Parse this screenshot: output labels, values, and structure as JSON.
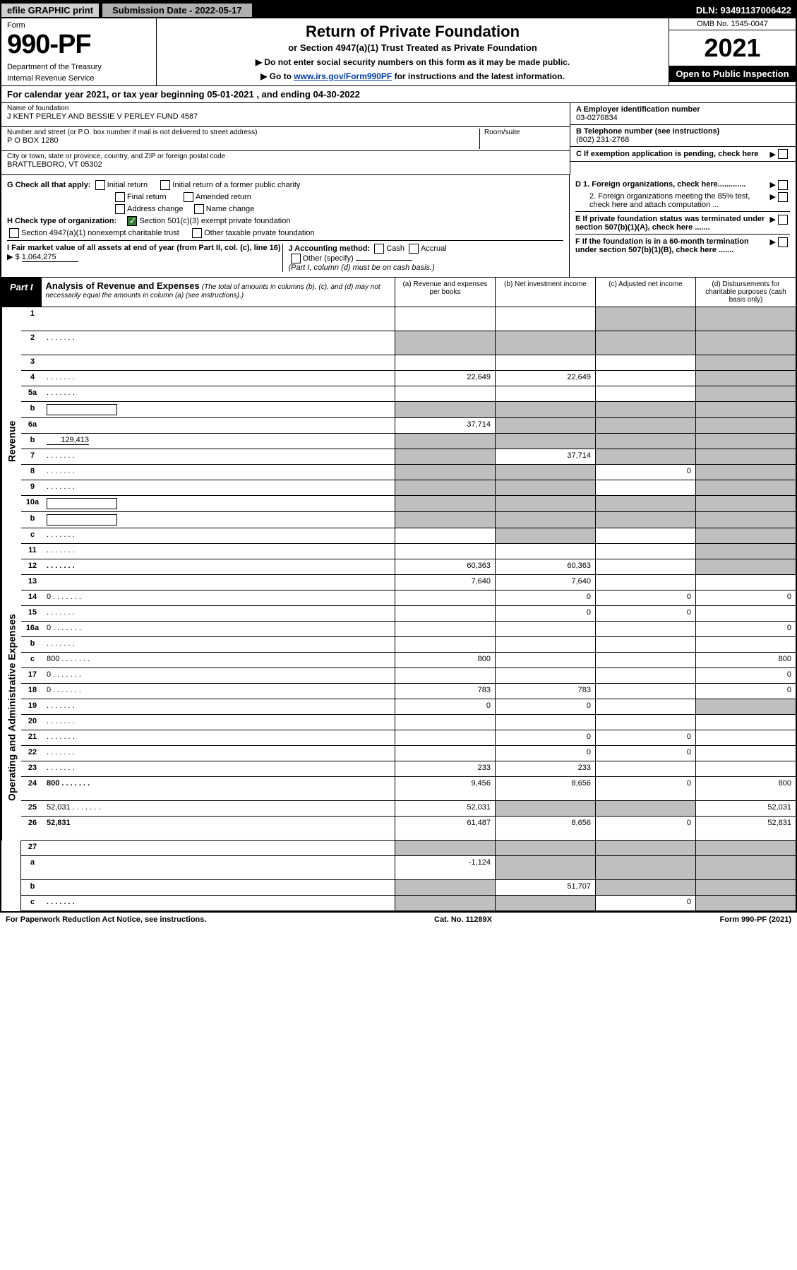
{
  "topbar": {
    "efile": "efile GRAPHIC print",
    "submission": "Submission Date - 2022-05-17",
    "dln": "DLN: 93491137006422"
  },
  "header": {
    "form_word": "Form",
    "form_num": "990-PF",
    "dept1": "Department of the Treasury",
    "dept2": "Internal Revenue Service",
    "title": "Return of Private Foundation",
    "subtitle": "or Section 4947(a)(1) Trust Treated as Private Foundation",
    "instr1": "▶ Do not enter social security numbers on this form as it may be made public.",
    "instr2_pre": "▶ Go to ",
    "instr2_link": "www.irs.gov/Form990PF",
    "instr2_post": " for instructions and the latest information.",
    "omb": "OMB No. 1545-0047",
    "year": "2021",
    "open": "Open to Public Inspection"
  },
  "calyr": "For calendar year 2021, or tax year beginning 05-01-2021                     , and ending 04-30-2022",
  "name_block": {
    "name_lbl": "Name of foundation",
    "name": "J KENT PERLEY AND BESSIE V PERLEY FUND 4587",
    "addr_lbl": "Number and street (or P.O. box number if mail is not delivered to street address)",
    "room_lbl": "Room/suite",
    "addr": "P O BOX 1280",
    "city_lbl": "City or town, state or province, country, and ZIP or foreign postal code",
    "city": "BRATTLEBORO, VT  05302"
  },
  "right_block": {
    "a_lbl": "A Employer identification number",
    "a_val": "03-0276834",
    "b_lbl": "B Telephone number (see instructions)",
    "b_val": "(802) 231-2768",
    "c_lbl": "C If exemption application is pending, check here",
    "d1": "D 1. Foreign organizations, check here.............",
    "d2": "2. Foreign organizations meeting the 85% test, check here and attach computation ...",
    "e": "E  If private foundation status was terminated under section 507(b)(1)(A), check here .......",
    "f": "F  If the foundation is in a 60-month termination under section 507(b)(1)(B), check here ......."
  },
  "g_block": {
    "g_lbl": "G Check all that apply:",
    "g_opts": [
      "Initial return",
      "Initial return of a former public charity",
      "Final return",
      "Amended return",
      "Address change",
      "Name change"
    ],
    "h_lbl": "H Check type of organization:",
    "h_opt1": "Section 501(c)(3) exempt private foundation",
    "h_opt2": "Section 4947(a)(1) nonexempt charitable trust",
    "h_opt3": "Other taxable private foundation",
    "i_lbl": "I Fair market value of all assets at end of year (from Part II, col. (c), line 16)",
    "i_val": "1,064,275",
    "j_lbl": "J Accounting method:",
    "j_opts": [
      "Cash",
      "Accrual"
    ],
    "j_other": "Other (specify)",
    "j_note": "(Part I, column (d) must be on cash basis.)"
  },
  "part1": {
    "label": "Part I",
    "title": "Analysis of Revenue and Expenses",
    "title_note": "(The total of amounts in columns (b), (c), and (d) may not necessarily equal the amounts in column (a) (see instructions).)",
    "col_a": "(a)   Revenue and expenses per books",
    "col_b": "(b)   Net investment income",
    "col_c": "(c)   Adjusted net income",
    "col_d": "(d)   Disbursements for charitable purposes (cash basis only)"
  },
  "side_rev": "Revenue",
  "side_exp": "Operating and Administrative Expenses",
  "rows_rev": [
    {
      "n": "1",
      "d": "",
      "a": "",
      "b": "",
      "c": "",
      "grey_c": true,
      "grey_d": true,
      "tall": true
    },
    {
      "n": "2",
      "d": "",
      "dots": true,
      "a": "",
      "b": "",
      "c": "",
      "grey_a": true,
      "grey_b": true,
      "grey_c": true,
      "grey_d": true,
      "tall": true,
      "bold_not": true
    },
    {
      "n": "3",
      "d": "",
      "a": "",
      "b": "",
      "c": "",
      "grey_d": true
    },
    {
      "n": "4",
      "d": "",
      "dots": true,
      "a": "22,649",
      "b": "22,649",
      "c": "",
      "grey_d": true
    },
    {
      "n": "5a",
      "d": "",
      "dots": true,
      "a": "",
      "b": "",
      "c": "",
      "grey_d": true
    },
    {
      "n": "b",
      "d": "",
      "inline": true,
      "a": "",
      "b": "",
      "c": "",
      "grey_a": true,
      "grey_b": true,
      "grey_c": true,
      "grey_d": true
    },
    {
      "n": "6a",
      "d": "",
      "a": "37,714",
      "b": "",
      "c": "",
      "grey_b": true,
      "grey_c": true,
      "grey_d": true
    },
    {
      "n": "b",
      "d": "",
      "inline_val": "129,413",
      "a": "",
      "b": "",
      "c": "",
      "grey_a": true,
      "grey_b": true,
      "grey_c": true,
      "grey_d": true
    },
    {
      "n": "7",
      "d": "",
      "dots": true,
      "a": "",
      "b": "37,714",
      "c": "",
      "grey_a": true,
      "grey_c": true,
      "grey_d": true
    },
    {
      "n": "8",
      "d": "",
      "dots": true,
      "a": "",
      "b": "",
      "c": "0",
      "grey_a": true,
      "grey_b": true,
      "grey_d": true
    },
    {
      "n": "9",
      "d": "",
      "dots": true,
      "a": "",
      "b": "",
      "c": "",
      "grey_a": true,
      "grey_b": true,
      "grey_d": true
    },
    {
      "n": "10a",
      "d": "",
      "inline": true,
      "a": "",
      "b": "",
      "c": "",
      "grey_a": true,
      "grey_b": true,
      "grey_c": true,
      "grey_d": true
    },
    {
      "n": "b",
      "d": "",
      "dots": true,
      "inline": true,
      "a": "",
      "b": "",
      "c": "",
      "grey_a": true,
      "grey_b": true,
      "grey_c": true,
      "grey_d": true
    },
    {
      "n": "c",
      "d": "",
      "dots": true,
      "a": "",
      "b": "",
      "c": "",
      "grey_b": true,
      "grey_d": true
    },
    {
      "n": "11",
      "d": "",
      "dots": true,
      "a": "",
      "b": "",
      "c": "",
      "grey_d": true
    },
    {
      "n": "12",
      "d": "",
      "dots": true,
      "bold": true,
      "a": "60,363",
      "b": "60,363",
      "c": "",
      "grey_d": true
    }
  ],
  "rows_exp": [
    {
      "n": "13",
      "d": "",
      "a": "7,640",
      "b": "7,640",
      "c": ""
    },
    {
      "n": "14",
      "d": "0",
      "dots": true,
      "a": "",
      "b": "0",
      "c": "0"
    },
    {
      "n": "15",
      "d": "",
      "dots": true,
      "a": "",
      "b": "0",
      "c": "0"
    },
    {
      "n": "16a",
      "d": "0",
      "dots": true,
      "a": "",
      "b": "",
      "c": ""
    },
    {
      "n": "b",
      "d": "",
      "dots": true,
      "a": "",
      "b": "",
      "c": ""
    },
    {
      "n": "c",
      "d": "800",
      "dots": true,
      "a": "800",
      "b": "",
      "c": ""
    },
    {
      "n": "17",
      "d": "0",
      "dots": true,
      "a": "",
      "b": "",
      "c": ""
    },
    {
      "n": "18",
      "d": "0",
      "dots": true,
      "a": "783",
      "b": "783",
      "c": ""
    },
    {
      "n": "19",
      "d": "",
      "dots": true,
      "a": "0",
      "b": "0",
      "c": "",
      "grey_d": true
    },
    {
      "n": "20",
      "d": "",
      "dots": true,
      "a": "",
      "b": "",
      "c": ""
    },
    {
      "n": "21",
      "d": "",
      "dots": true,
      "a": "",
      "b": "0",
      "c": "0"
    },
    {
      "n": "22",
      "d": "",
      "dots": true,
      "a": "",
      "b": "0",
      "c": "0"
    },
    {
      "n": "23",
      "d": "",
      "dots": true,
      "a": "233",
      "b": "233",
      "c": ""
    },
    {
      "n": "24",
      "d": "800",
      "dots": true,
      "bold": true,
      "a": "9,456",
      "b": "8,656",
      "c": "0",
      "tall": true
    },
    {
      "n": "25",
      "d": "52,031",
      "dots": true,
      "a": "52,031",
      "b": "",
      "c": "",
      "grey_b": true,
      "grey_c": true
    },
    {
      "n": "26",
      "d": "52,831",
      "bold": true,
      "a": "61,487",
      "b": "8,656",
      "c": "0",
      "tall": true
    }
  ],
  "rows_bottom": [
    {
      "n": "27",
      "d": "",
      "a": "",
      "b": "",
      "c": "",
      "grey_a": true,
      "grey_b": true,
      "grey_c": true,
      "grey_d": true
    },
    {
      "n": "a",
      "d": "",
      "bold": true,
      "a": "-1,124",
      "b": "",
      "c": "",
      "grey_b": true,
      "grey_c": true,
      "grey_d": true,
      "tall": true
    },
    {
      "n": "b",
      "d": "",
      "bold": true,
      "a": "",
      "b": "51,707",
      "c": "",
      "grey_a": true,
      "grey_c": true,
      "grey_d": true
    },
    {
      "n": "c",
      "d": "",
      "dots": true,
      "bold": true,
      "a": "",
      "b": "",
      "c": "0",
      "grey_a": true,
      "grey_b": true,
      "grey_d": true
    }
  ],
  "footer": {
    "left": "For Paperwork Reduction Act Notice, see instructions.",
    "center": "Cat. No. 11289X",
    "right": "Form 990-PF (2021)"
  }
}
